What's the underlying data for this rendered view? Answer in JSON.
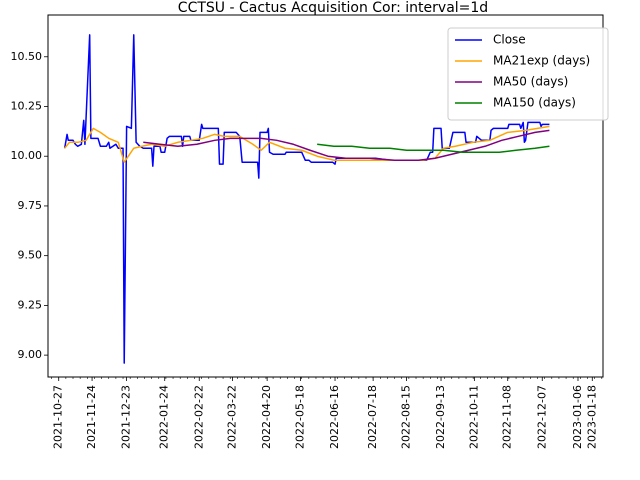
{
  "chart_data": {
    "type": "line",
    "title": "CCTSU - Cactus Acquisition Cor: interval=1d",
    "xlabel": "",
    "ylabel": "",
    "xlim": [
      "2021-10-18",
      "2023-01-27"
    ],
    "ylim": [
      8.89,
      10.71
    ],
    "x_ticks": [
      "2021-10-27",
      "2021-11-24",
      "2021-12-23",
      "2022-01-24",
      "2022-02-22",
      "2022-03-22",
      "2022-04-20",
      "2022-05-18",
      "2022-06-16",
      "2022-07-18",
      "2022-08-15",
      "2022-09-13",
      "2022-10-11",
      "2022-11-08",
      "2022-12-07",
      "2023-01-06",
      "2023-01-18"
    ],
    "x_tick_labels": [
      "2021-10-27",
      "2021-11-24",
      "2021-12-23",
      "2022-01-24",
      "2022-02-22",
      "2022-03-22",
      "2022-04-20",
      "2022-05-18",
      "2022-06-16",
      "2022-07-18",
      "2022-08-15",
      "2022-09-13",
      "2022-10-11",
      "2022-11-08",
      "2022-12-07",
      "2023-01-06",
      "2023-01-18"
    ],
    "y_ticks": [
      9.0,
      9.25,
      9.5,
      9.75,
      10.0,
      10.25,
      10.5
    ],
    "y_tick_labels": [
      "9.00",
      "9.25",
      "9.50",
      "9.75",
      "10.00",
      "10.25",
      "10.50"
    ],
    "grid": false,
    "legend_position": "top-right",
    "series": [
      {
        "name": "Close",
        "color": "#0000ff",
        "points": [
          [
            "2021-11-01",
            10.04
          ],
          [
            "2021-11-03",
            10.11
          ],
          [
            "2021-11-04",
            10.08
          ],
          [
            "2021-11-08",
            10.08
          ],
          [
            "2021-11-10",
            10.06
          ],
          [
            "2021-11-12",
            10.05
          ],
          [
            "2021-11-15",
            10.06
          ],
          [
            "2021-11-17",
            10.18
          ],
          [
            "2021-11-18",
            10.06
          ],
          [
            "2021-11-22",
            10.61
          ],
          [
            "2021-11-23",
            10.09
          ],
          [
            "2021-11-29",
            10.09
          ],
          [
            "2021-12-01",
            10.05
          ],
          [
            "2021-12-06",
            10.05
          ],
          [
            "2021-12-08",
            10.07
          ],
          [
            "2021-12-09",
            10.04
          ],
          [
            "2021-12-14",
            10.06
          ],
          [
            "2021-12-16",
            10.04
          ],
          [
            "2021-12-20",
            10.04
          ],
          [
            "2021-12-21",
            8.96
          ],
          [
            "2021-12-23",
            10.15
          ],
          [
            "2021-12-27",
            10.14
          ],
          [
            "2021-12-29",
            10.61
          ],
          [
            "2021-12-31",
            10.07
          ],
          [
            "2022-01-03",
            10.05
          ],
          [
            "2022-01-06",
            10.04
          ],
          [
            "2022-01-13",
            10.04
          ],
          [
            "2022-01-14",
            9.95
          ],
          [
            "2022-01-15",
            10.05
          ],
          [
            "2022-01-20",
            10.05
          ],
          [
            "2022-01-21",
            10.02
          ],
          [
            "2022-01-24",
            10.02
          ],
          [
            "2022-01-26",
            10.09
          ],
          [
            "2022-01-28",
            10.1
          ],
          [
            "2022-02-07",
            10.1
          ],
          [
            "2022-02-08",
            10.05
          ],
          [
            "2022-02-09",
            10.1
          ],
          [
            "2022-02-14",
            10.1
          ],
          [
            "2022-02-15",
            10.08
          ],
          [
            "2022-02-22",
            10.08
          ],
          [
            "2022-02-24",
            10.16
          ],
          [
            "2022-02-25",
            10.14
          ],
          [
            "2022-03-10",
            10.14
          ],
          [
            "2022-03-11",
            9.96
          ],
          [
            "2022-03-14",
            9.96
          ],
          [
            "2022-03-15",
            10.12
          ],
          [
            "2022-03-25",
            10.12
          ],
          [
            "2022-03-28",
            10.1
          ],
          [
            "2022-03-30",
            9.97
          ],
          [
            "2022-04-08",
            9.97
          ],
          [
            "2022-04-12",
            9.97
          ],
          [
            "2022-04-13",
            9.89
          ],
          [
            "2022-04-14",
            10.12
          ],
          [
            "2022-04-20",
            10.12
          ],
          [
            "2022-04-21",
            10.14
          ],
          [
            "2022-04-22",
            10.02
          ],
          [
            "2022-04-25",
            10.01
          ],
          [
            "2022-05-05",
            10.01
          ],
          [
            "2022-05-06",
            10.02
          ],
          [
            "2022-05-19",
            10.02
          ],
          [
            "2022-05-22",
            9.98
          ],
          [
            "2022-05-25",
            9.98
          ],
          [
            "2022-05-27",
            9.97
          ],
          [
            "2022-06-14",
            9.97
          ],
          [
            "2022-06-16",
            9.96
          ],
          [
            "2022-06-17",
            9.99
          ],
          [
            "2022-06-25",
            9.99
          ],
          [
            "2022-07-03",
            9.99
          ],
          [
            "2022-07-20",
            9.99
          ],
          [
            "2022-08-01",
            9.98
          ],
          [
            "2022-08-25",
            9.98
          ],
          [
            "2022-09-01",
            9.98
          ],
          [
            "2022-09-04",
            10.02
          ],
          [
            "2022-09-06",
            10.02
          ],
          [
            "2022-09-07",
            10.14
          ],
          [
            "2022-09-13",
            10.14
          ],
          [
            "2022-09-14",
            10.04
          ],
          [
            "2022-09-20",
            10.04
          ],
          [
            "2022-09-23",
            10.12
          ],
          [
            "2022-10-03",
            10.12
          ],
          [
            "2022-10-04",
            10.07
          ],
          [
            "2022-10-12",
            10.07
          ],
          [
            "2022-10-13",
            10.1
          ],
          [
            "2022-10-17",
            10.08
          ],
          [
            "2022-10-24",
            10.08
          ],
          [
            "2022-10-25",
            10.13
          ],
          [
            "2022-10-27",
            10.14
          ],
          [
            "2022-11-08",
            10.14
          ],
          [
            "2022-11-09",
            10.16
          ],
          [
            "2022-11-18",
            10.16
          ],
          [
            "2022-11-19",
            10.14
          ],
          [
            "2022-11-21",
            10.17
          ],
          [
            "2022-11-22",
            10.07
          ],
          [
            "2022-11-23",
            10.08
          ],
          [
            "2022-11-25",
            10.17
          ],
          [
            "2022-12-05",
            10.17
          ],
          [
            "2022-12-06",
            10.15
          ],
          [
            "2022-12-07",
            10.16
          ],
          [
            "2022-12-13",
            10.16
          ]
        ]
      },
      {
        "name": "MA21exp (days)",
        "color": "#ffa500",
        "points": [
          [
            "2021-11-01",
            10.04
          ],
          [
            "2021-11-05",
            10.07
          ],
          [
            "2021-11-12",
            10.07
          ],
          [
            "2021-11-19",
            10.08
          ],
          [
            "2021-11-25",
            10.14
          ],
          [
            "2021-12-01",
            10.12
          ],
          [
            "2021-12-08",
            10.09
          ],
          [
            "2021-12-16",
            10.07
          ],
          [
            "2021-12-21",
            9.97
          ],
          [
            "2021-12-29",
            10.04
          ],
          [
            "2022-01-05",
            10.05
          ],
          [
            "2022-01-13",
            10.06
          ],
          [
            "2022-01-24",
            10.05
          ],
          [
            "2022-02-04",
            10.07
          ],
          [
            "2022-02-15",
            10.08
          ],
          [
            "2022-02-25",
            10.09
          ],
          [
            "2022-03-07",
            10.11
          ],
          [
            "2022-03-15",
            10.1
          ],
          [
            "2022-03-28",
            10.1
          ],
          [
            "2022-04-08",
            10.06
          ],
          [
            "2022-04-15",
            10.03
          ],
          [
            "2022-04-22",
            10.07
          ],
          [
            "2022-05-05",
            10.04
          ],
          [
            "2022-05-19",
            10.03
          ],
          [
            "2022-06-01",
            10.0
          ],
          [
            "2022-06-15",
            9.98
          ],
          [
            "2022-07-03",
            9.98
          ],
          [
            "2022-08-01",
            9.98
          ],
          [
            "2022-08-29",
            9.98
          ],
          [
            "2022-09-08",
            9.99
          ],
          [
            "2022-09-15",
            10.04
          ],
          [
            "2022-09-25",
            10.05
          ],
          [
            "2022-10-10",
            10.07
          ],
          [
            "2022-10-24",
            10.08
          ],
          [
            "2022-11-08",
            10.12
          ],
          [
            "2022-11-23",
            10.13
          ],
          [
            "2022-12-13",
            10.15
          ]
        ]
      },
      {
        "name": "MA50 (days)",
        "color": "#800080",
        "points": [
          [
            "2022-01-06",
            10.07
          ],
          [
            "2022-01-20",
            10.06
          ],
          [
            "2022-02-04",
            10.05
          ],
          [
            "2022-02-20",
            10.06
          ],
          [
            "2022-03-07",
            10.08
          ],
          [
            "2022-03-20",
            10.09
          ],
          [
            "2022-04-01",
            10.09
          ],
          [
            "2022-04-15",
            10.09
          ],
          [
            "2022-04-28",
            10.08
          ],
          [
            "2022-05-12",
            10.06
          ],
          [
            "2022-05-26",
            10.03
          ],
          [
            "2022-06-10",
            10.0
          ],
          [
            "2022-06-25",
            9.99
          ],
          [
            "2022-07-15",
            9.99
          ],
          [
            "2022-08-05",
            9.98
          ],
          [
            "2022-08-25",
            9.98
          ],
          [
            "2022-09-08",
            9.99
          ],
          [
            "2022-09-22",
            10.01
          ],
          [
            "2022-10-06",
            10.03
          ],
          [
            "2022-10-20",
            10.05
          ],
          [
            "2022-11-03",
            10.08
          ],
          [
            "2022-11-17",
            10.1
          ],
          [
            "2022-12-01",
            10.12
          ],
          [
            "2022-12-13",
            10.13
          ]
        ]
      },
      {
        "name": "MA150 (days)",
        "color": "#008000",
        "points": [
          [
            "2022-06-01",
            10.06
          ],
          [
            "2022-06-15",
            10.05
          ],
          [
            "2022-06-30",
            10.05
          ],
          [
            "2022-07-15",
            10.04
          ],
          [
            "2022-08-01",
            10.04
          ],
          [
            "2022-08-15",
            10.03
          ],
          [
            "2022-09-01",
            10.03
          ],
          [
            "2022-09-15",
            10.03
          ],
          [
            "2022-10-01",
            10.02
          ],
          [
            "2022-10-15",
            10.02
          ],
          [
            "2022-11-01",
            10.02
          ],
          [
            "2022-11-15",
            10.03
          ],
          [
            "2022-12-01",
            10.04
          ],
          [
            "2022-12-13",
            10.05
          ]
        ]
      }
    ]
  }
}
